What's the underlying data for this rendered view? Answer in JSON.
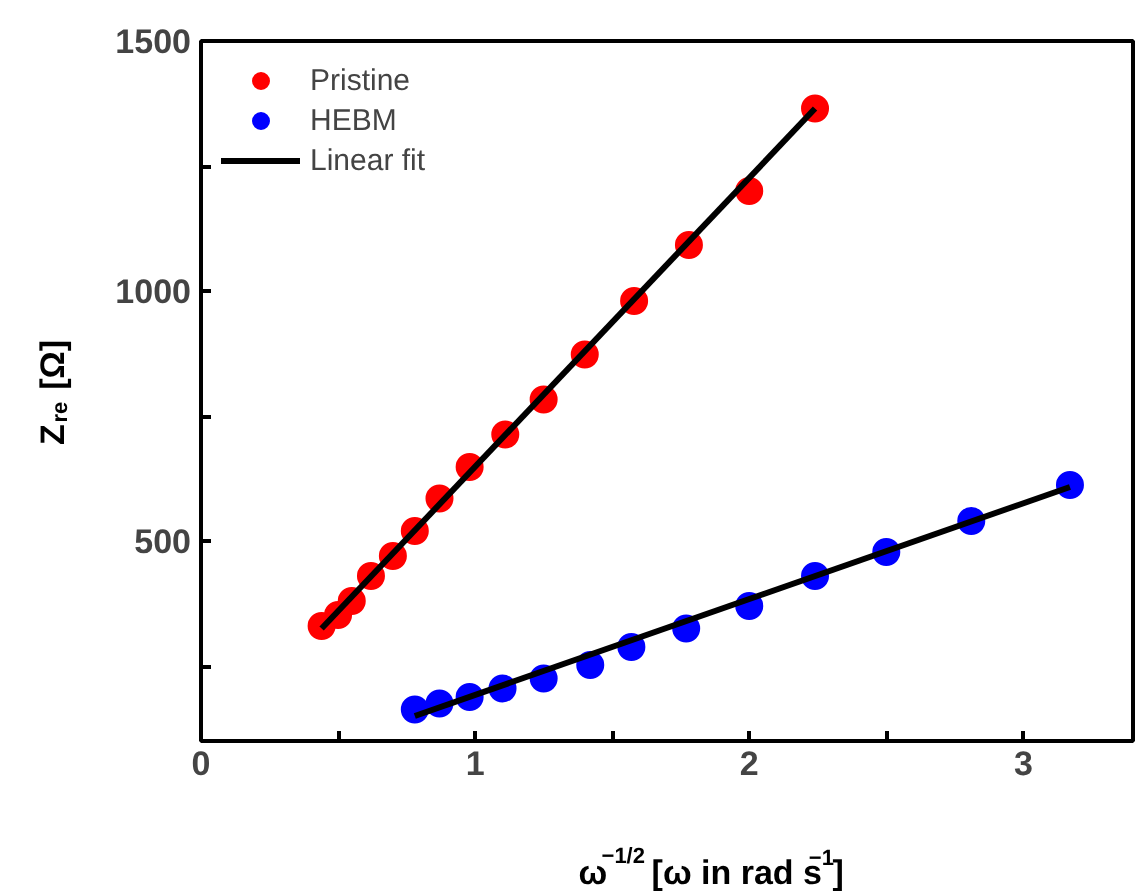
{
  "chart_data": {
    "type": "scatter",
    "xlabel": "ω$^{−1/2}$ [ω in rad s$^{−1}$]",
    "ylabel": "Z$_{re}$ [Ω]",
    "xlim": [
      0,
      3.4
    ],
    "ylim": [
      100,
      1500
    ],
    "xticks": [
      0,
      {
        "value": 0.5,
        "label": null
      },
      1,
      {
        "value": 1.5,
        "label": null
      },
      2,
      {
        "value": 2.5,
        "label": null
      },
      3
    ],
    "yticks": [
      {
        "value": 250,
        "label": null
      },
      500,
      {
        "value": 750,
        "label": null
      },
      1000,
      {
        "value": 1250,
        "label": null
      },
      1500
    ],
    "grid": false,
    "legend": "top left",
    "marker": "circle",
    "series": [
      {
        "name": "Pristine",
        "color": "#ff0000",
        "x": [
          0.44,
          0.5,
          0.55,
          0.62,
          0.7,
          0.78,
          0.87,
          0.98,
          1.11,
          1.25,
          1.4,
          1.58,
          1.78,
          2.0,
          2.24
        ],
        "values": [
          330,
          352,
          380,
          430,
          470,
          520,
          585,
          648,
          713,
          783,
          873,
          980,
          1092,
          1200,
          1365
        ]
      },
      {
        "name": "HEBM",
        "color": "#0000ff",
        "x": [
          0.78,
          0.87,
          0.98,
          1.1,
          1.25,
          1.42,
          1.57,
          1.77,
          2.0,
          2.24,
          2.5,
          2.81,
          3.17
        ],
        "values": [
          163,
          175,
          188,
          205,
          225,
          252,
          288,
          325,
          370,
          430,
          478,
          540,
          612
        ]
      },
      {
        "name": "Linear fit",
        "type": "line",
        "marker": "none",
        "color": "#000000",
        "x": [
          0.44,
          2.24
        ],
        "values": [
          325,
          1365
        ]
      },
      {
        "type": "line",
        "marker": "none",
        "color": "#000000",
        "x": [
          0.78,
          3.17
        ],
        "values": [
          150,
          608
        ]
      }
    ]
  }
}
